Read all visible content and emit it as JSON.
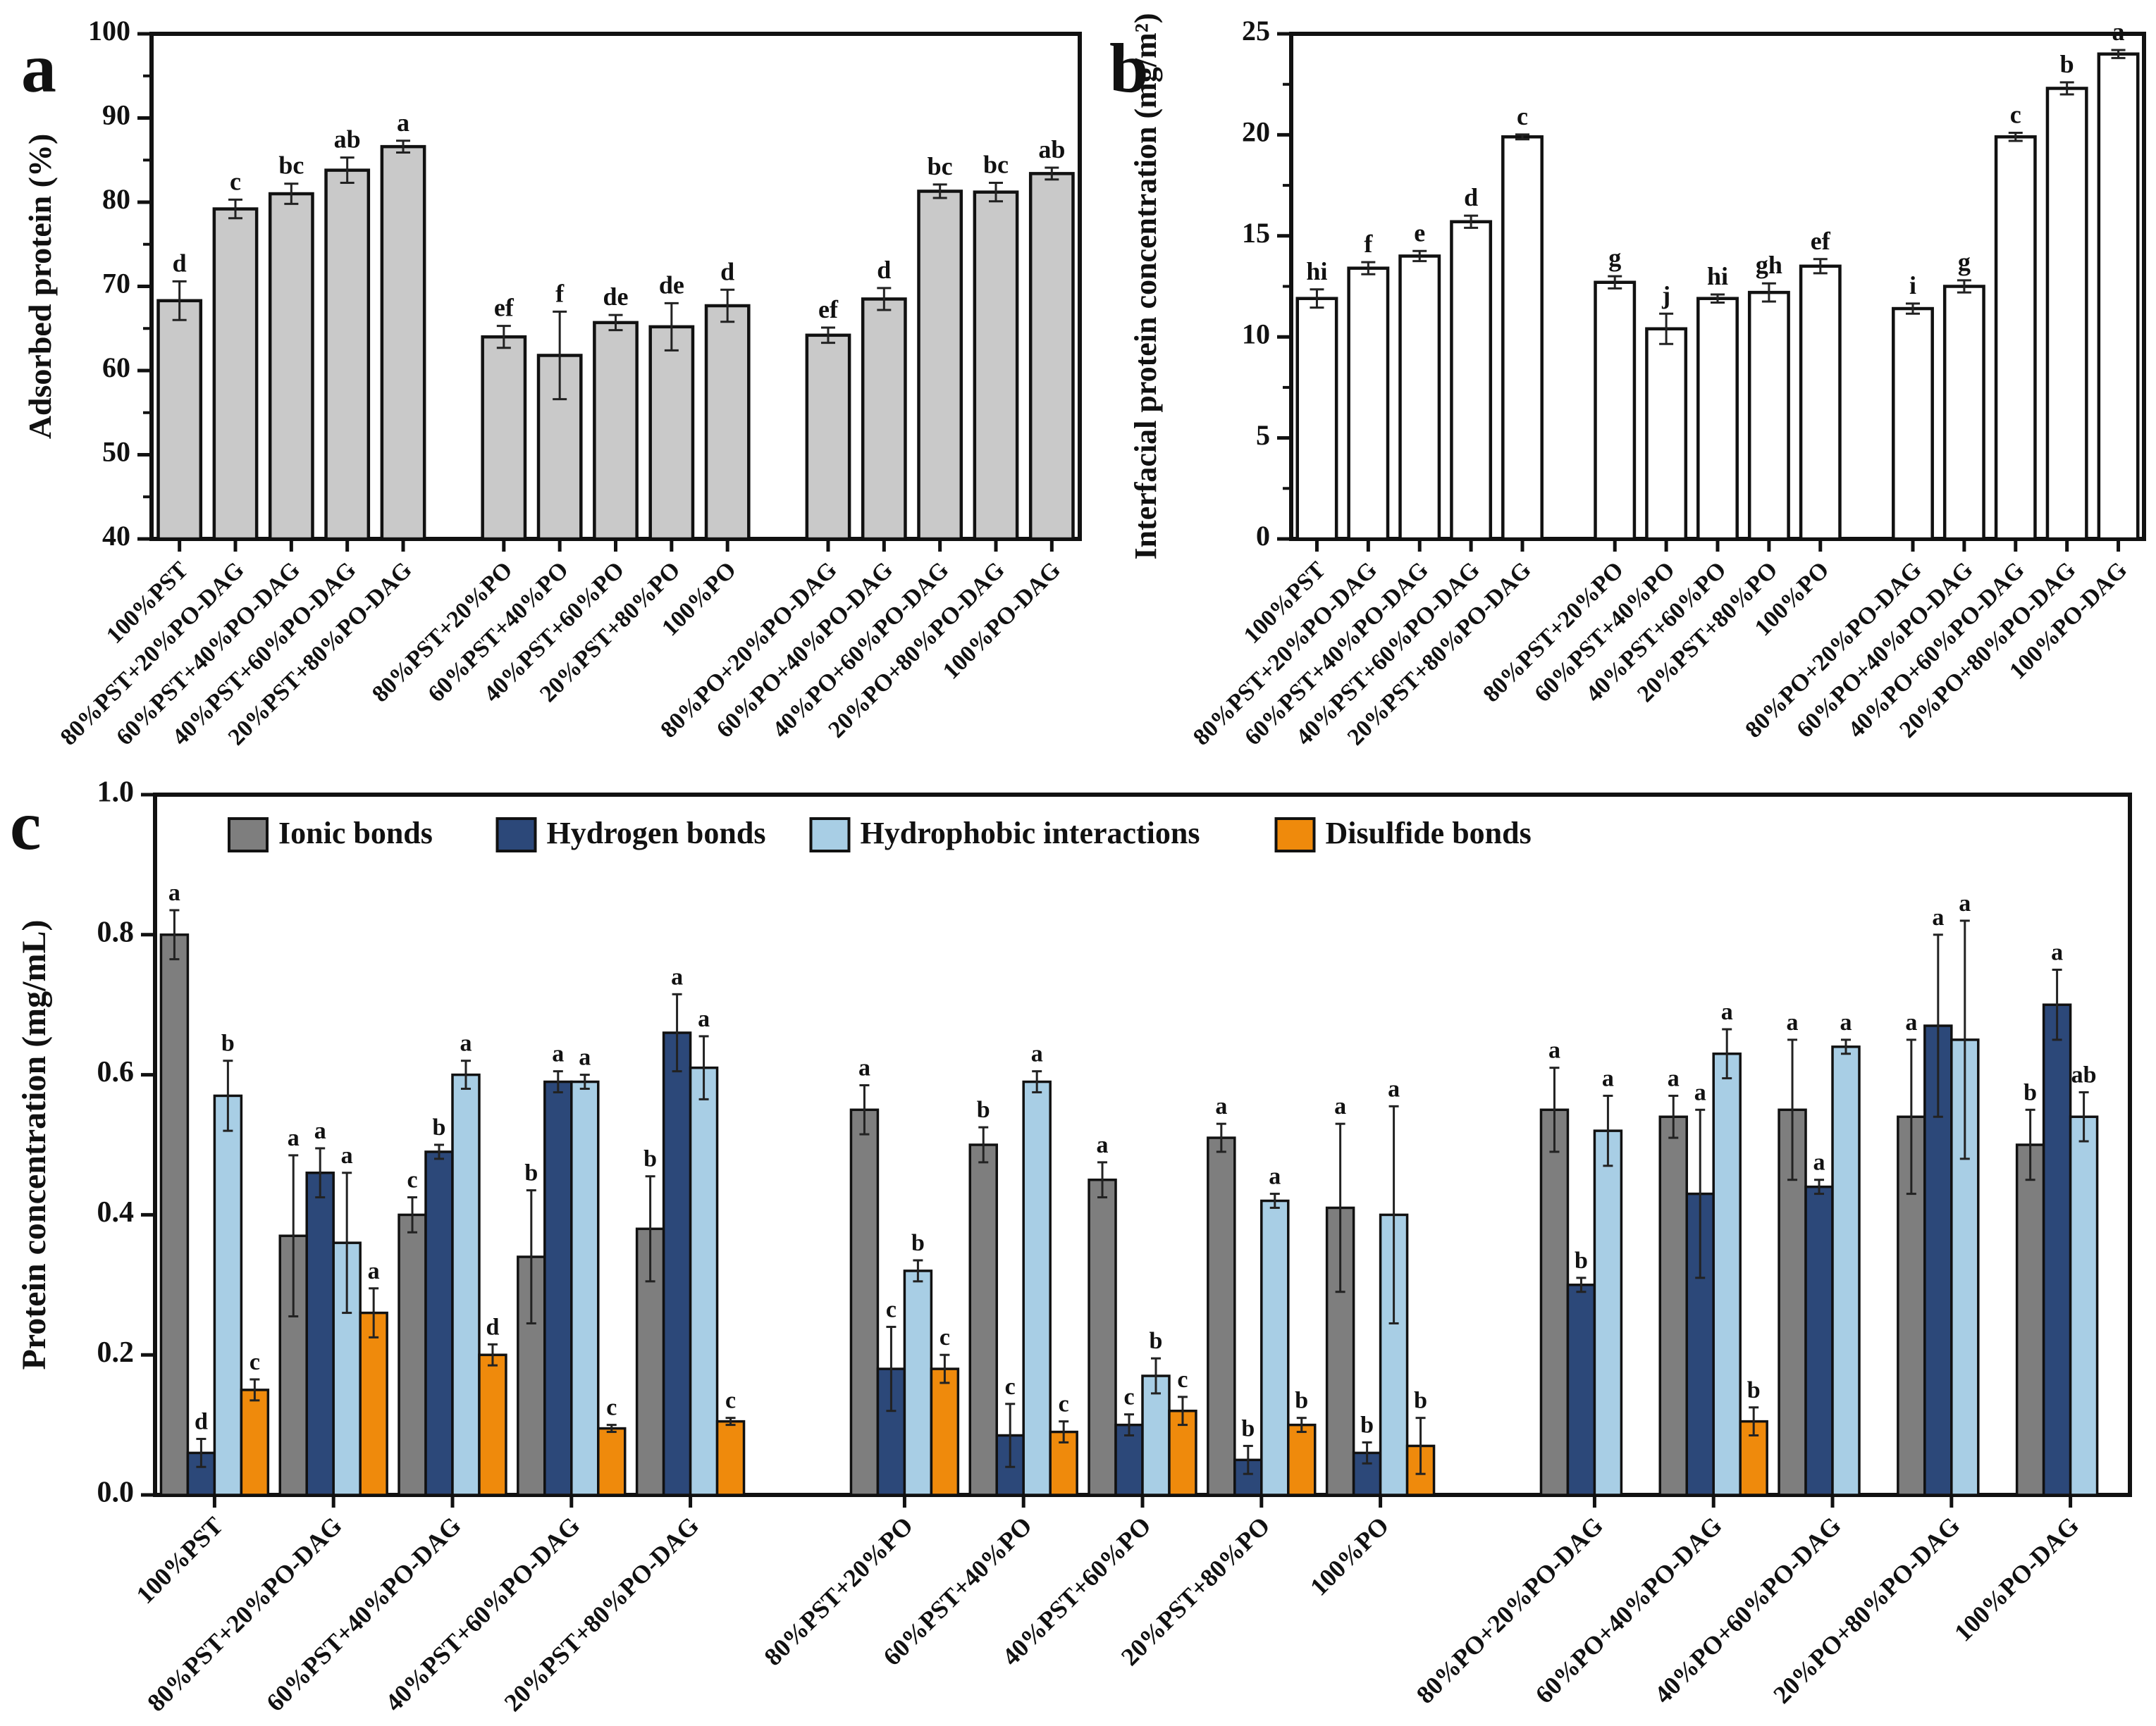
{
  "figure": {
    "background": "#ffffff",
    "panel_letters": [
      "a",
      "b",
      "c"
    ]
  },
  "chart_data": [
    {
      "id": "a",
      "type": "bar",
      "panel_label": "a",
      "title": "",
      "xlabel": "",
      "ylabel": "Adsorbed protein (%)",
      "ylim": [
        40,
        100
      ],
      "ytick_step": 10,
      "minor_tick_step": 5,
      "ytick_decimals": 0,
      "grid": false,
      "group_gap_after": [
        4,
        9
      ],
      "categories": [
        "100%PST",
        "80%PST+20%PO-DAG",
        "60%PST+40%PO-DAG",
        "40%PST+60%PO-DAG",
        "20%PST+80%PO-DAG",
        "80%PST+20%PO",
        "60%PST+40%PO",
        "40%PST+60%PO",
        "20%PST+80%PO",
        "100%PO",
        "80%PO+20%PO-DAG",
        "60%PO+40%PO-DAG",
        "40%PO+60%PO-DAG",
        "20%PO+80%PO-DAG",
        "100%PO-DAG"
      ],
      "series": [
        {
          "name": "Adsorbed protein",
          "color": "#c9c9c9",
          "values": [
            68.3,
            79.2,
            81.0,
            83.8,
            86.6,
            64.0,
            61.8,
            65.7,
            65.2,
            67.7,
            64.2,
            68.5,
            81.3,
            81.2,
            83.4
          ],
          "errors": [
            2.3,
            1.1,
            1.2,
            1.5,
            0.7,
            1.3,
            5.2,
            0.9,
            2.8,
            1.9,
            0.9,
            1.3,
            0.8,
            1.1,
            0.7
          ],
          "letters": [
            "d",
            "c",
            "bc",
            "ab",
            "a",
            "ef",
            "f",
            "de",
            "de",
            "d",
            "ef",
            "d",
            "bc",
            "bc",
            "ab"
          ]
        }
      ]
    },
    {
      "id": "b",
      "type": "bar",
      "panel_label": "b",
      "title": "",
      "xlabel": "",
      "ylabel": "Interfacial protein concentration (mg/m²)",
      "ylim": [
        0,
        25
      ],
      "ytick_step": 5,
      "minor_tick_step": 2.5,
      "ytick_decimals": 0,
      "grid": false,
      "group_gap_after": [
        4,
        9
      ],
      "categories": [
        "100%PST",
        "80%PST+20%PO-DAG",
        "60%PST+40%PO-DAG",
        "40%PST+60%PO-DAG",
        "20%PST+80%PO-DAG",
        "80%PST+20%PO",
        "60%PST+40%PO",
        "40%PST+60%PO",
        "20%PST+80%PO",
        "100%PO",
        "80%PO+20%PO-DAG",
        "60%PO+40%PO-DAG",
        "40%PO+60%PO-DAG",
        "20%PO+80%PO-DAG",
        "100%PO-DAG"
      ],
      "series": [
        {
          "name": "Interfacial protein concentration",
          "color": "#ffffff",
          "values": [
            11.9,
            13.4,
            14.0,
            15.7,
            19.9,
            12.7,
            10.4,
            11.9,
            12.2,
            13.5,
            11.4,
            12.5,
            19.9,
            22.3,
            24.0
          ],
          "errors": [
            0.45,
            0.3,
            0.25,
            0.3,
            0.12,
            0.3,
            0.75,
            0.2,
            0.45,
            0.35,
            0.25,
            0.3,
            0.2,
            0.3,
            0.2
          ],
          "letters": [
            "hi",
            "f",
            "e",
            "d",
            "c",
            "g",
            "j",
            "hi",
            "gh",
            "ef",
            "i",
            "g",
            "c",
            "b",
            "a"
          ]
        }
      ]
    },
    {
      "id": "c",
      "type": "bar",
      "panel_label": "c",
      "title": "",
      "xlabel": "",
      "ylabel": "Protein concentration (mg/mL)",
      "ylim": [
        0,
        1.0
      ],
      "ytick_step": 0.2,
      "minor_tick_step": null,
      "ytick_decimals": 1,
      "grid": false,
      "legend_position": "top-left-inside",
      "group_gap_after": [
        4,
        9
      ],
      "categories": [
        "100%PST",
        "80%PST+20%PO-DAG",
        "60%PST+40%PO-DAG",
        "40%PST+60%PO-DAG",
        "20%PST+80%PO-DAG",
        "80%PST+20%PO",
        "60%PST+40%PO",
        "40%PST+60%PO",
        "20%PST+80%PO",
        "100%PO",
        "80%PO+20%PO-DAG",
        "60%PO+40%PO-DAG",
        "40%PO+60%PO-DAG",
        "20%PO+80%PO-DAG",
        "100%PO-DAG"
      ],
      "series": [
        {
          "name": "Ionic bonds",
          "color": "#7e7e7e",
          "values": [
            0.8,
            0.37,
            0.4,
            0.34,
            0.38,
            0.55,
            0.5,
            0.45,
            0.51,
            0.41,
            0.55,
            0.54,
            0.55,
            0.54,
            0.5
          ],
          "errors": [
            0.035,
            0.115,
            0.025,
            0.095,
            0.075,
            0.035,
            0.025,
            0.025,
            0.02,
            0.12,
            0.06,
            0.03,
            0.1,
            0.11,
            0.05
          ],
          "letters": [
            "a",
            "a",
            "c",
            "b",
            "b",
            "a",
            "b",
            "a",
            "a",
            "a",
            "a",
            "a",
            "a",
            "a",
            "b"
          ]
        },
        {
          "name": "Hydrogen bonds",
          "color": "#2c4879",
          "values": [
            0.06,
            0.46,
            0.49,
            0.59,
            0.66,
            0.18,
            0.085,
            0.1,
            0.05,
            0.06,
            0.3,
            0.43,
            0.44,
            0.67,
            0.7
          ],
          "errors": [
            0.02,
            0.035,
            0.01,
            0.015,
            0.055,
            0.06,
            0.045,
            0.015,
            0.02,
            0.015,
            0.01,
            0.12,
            0.01,
            0.13,
            0.05
          ],
          "letters": [
            "d",
            "a",
            "b",
            "a",
            "a",
            "c",
            "c",
            "c",
            "b",
            "b",
            "b",
            "a",
            "a",
            "a",
            "a"
          ]
        },
        {
          "name": "Hydrophobic interactions",
          "color": "#a8cee5",
          "values": [
            0.57,
            0.36,
            0.6,
            0.59,
            0.61,
            0.32,
            0.59,
            0.17,
            0.42,
            0.4,
            0.52,
            0.63,
            0.64,
            0.65,
            0.54
          ],
          "errors": [
            0.05,
            0.1,
            0.02,
            0.01,
            0.045,
            0.015,
            0.015,
            0.025,
            0.01,
            0.155,
            0.05,
            0.035,
            0.01,
            0.17,
            0.035
          ],
          "letters": [
            "b",
            "a",
            "a",
            "a",
            "a",
            "b",
            "a",
            "b",
            "a",
            "a",
            "a",
            "a",
            "a",
            "a",
            "ab"
          ]
        },
        {
          "name": "Disulfide bonds",
          "color": "#ef8a0c",
          "values": [
            0.15,
            0.26,
            0.2,
            0.095,
            0.105,
            0.18,
            0.09,
            0.12,
            0.1,
            0.07,
            0,
            0.105,
            0,
            0,
            0
          ],
          "errors": [
            0.015,
            0.035,
            0.015,
            0.005,
            0.005,
            0.02,
            0.015,
            0.02,
            0.01,
            0.04,
            0,
            0.02,
            0,
            0,
            0
          ],
          "letters": [
            "c",
            "a",
            "d",
            "c",
            "c",
            "c",
            "c",
            "c",
            "b",
            "b",
            "",
            "b",
            "",
            "",
            ""
          ]
        }
      ],
      "legend": [
        {
          "label": "Ionic bonds",
          "color": "#7e7e7e"
        },
        {
          "label": "Hydrogen bonds",
          "color": "#2c4879"
        },
        {
          "label": "Hydrophobic interactions",
          "color": "#a8cee5"
        },
        {
          "label": "Disulfide bonds",
          "color": "#ef8a0c"
        }
      ]
    }
  ]
}
